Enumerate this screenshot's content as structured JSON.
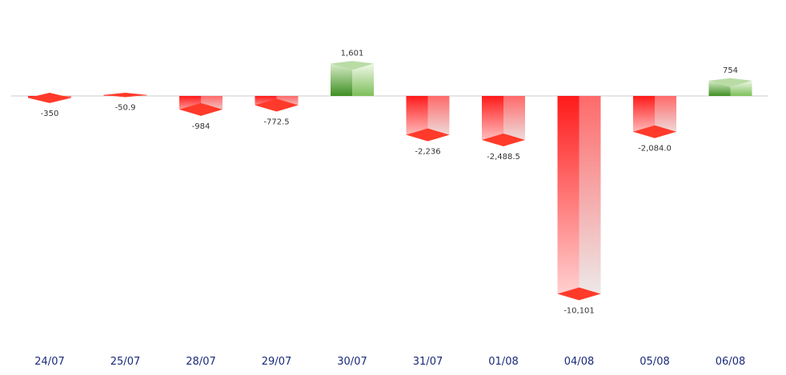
{
  "chart_data": {
    "type": "bar",
    "title": "",
    "xlabel": "",
    "ylabel": "",
    "categories": [
      "24/07",
      "25/07",
      "28/07",
      "29/07",
      "30/07",
      "31/07",
      "01/08",
      "04/08",
      "05/08",
      "06/08"
    ],
    "values": [
      -350,
      -50.9,
      -984,
      -772.5,
      1601,
      -2236,
      -2488.5,
      -10101,
      -2084.0,
      754
    ],
    "value_labels": [
      "-350",
      "-50.9",
      "-984",
      "-772.5",
      "1,601",
      "-2,236",
      "-2,488.5",
      "-10,101",
      "-2,084.0",
      "754"
    ],
    "ylim": [
      -11000,
      2000
    ],
    "grid": false,
    "legend": "none",
    "colors": {
      "positive": "#6aa84f",
      "negative": "#ff2020",
      "zero_line": "#cccccc",
      "axis_labels": "#1a2a7a"
    }
  }
}
